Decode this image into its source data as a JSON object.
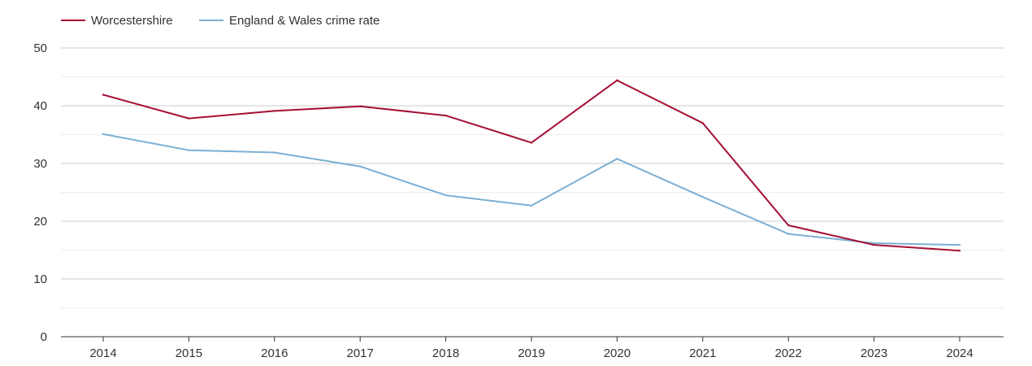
{
  "chart_data": {
    "type": "line",
    "title": "",
    "xlabel": "",
    "ylabel": "",
    "categories": [
      "2014",
      "2015",
      "2016",
      "2017",
      "2018",
      "2019",
      "2020",
      "2021",
      "2022",
      "2023",
      "2024"
    ],
    "series": [
      {
        "name": "Worcestershire",
        "color": "#a50f34",
        "values": [
          41.9,
          37.8,
          39.1,
          39.9,
          38.3,
          33.6,
          44.4,
          37.0,
          19.3,
          15.9,
          14.9
        ]
      },
      {
        "name": "England & Wales crime rate",
        "color": "#7bafd4",
        "values": [
          35.1,
          32.3,
          31.9,
          29.5,
          24.5,
          22.7,
          30.8,
          24.2,
          17.8,
          16.2,
          15.9
        ]
      }
    ],
    "ylim": [
      0,
      50
    ],
    "yticks": [
      "0",
      "10",
      "20",
      "30",
      "40",
      "50"
    ],
    "grid": true,
    "legend_position": "top-left"
  }
}
